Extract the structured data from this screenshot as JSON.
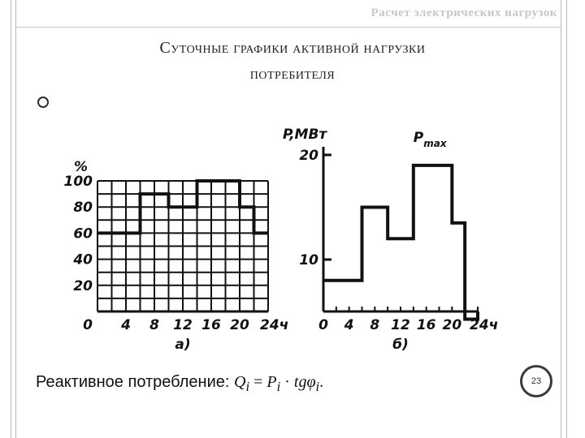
{
  "header": {
    "title": "Расчет электрических нагрузок"
  },
  "slide": {
    "title_line1": "Суточные графики активной нагрузки",
    "title_line2": "потребителя",
    "formula_prefix": "Реактивное потребление:",
    "formula_Q": "Q",
    "formula_Q_sub": "i",
    "formula_eq": "=",
    "formula_P": "P",
    "formula_P_sub": "i",
    "formula_dot": "·",
    "formula_tg": "tgφ",
    "formula_tg_sub": "i",
    "formula_end": ".",
    "page_number": "23"
  },
  "chart_data": [
    {
      "type": "line",
      "ylabel": "%",
      "caption": "а)",
      "xlim": [
        0,
        24
      ],
      "ylim": [
        0,
        100
      ],
      "x_ticks": [
        "0",
        "4",
        "8",
        "12",
        "16",
        "20",
        "24ч"
      ],
      "y_ticks": [
        "20",
        "40",
        "60",
        "80",
        "100"
      ],
      "grid": true,
      "step": true,
      "x": [
        0,
        6,
        6,
        10,
        10,
        14,
        14,
        20,
        20,
        22,
        22,
        24
      ],
      "y": [
        60,
        60,
        90,
        90,
        80,
        80,
        100,
        100,
        80,
        80,
        60,
        60
      ]
    },
    {
      "type": "line",
      "ylabel": "P,МВт",
      "caption": "б)",
      "annotation": "Pmax",
      "xlim": [
        0,
        24
      ],
      "y_ticks": [
        "10",
        "20"
      ],
      "y_tick_values": [
        10,
        20
      ],
      "x_ticks": [
        "0",
        "4",
        "8",
        "12",
        "16",
        "20",
        "24ч"
      ],
      "grid": false,
      "step": true,
      "x": [
        0,
        6,
        6,
        10,
        10,
        14,
        14,
        20,
        20,
        22,
        22,
        24
      ],
      "y": [
        8,
        8,
        15,
        15,
        12,
        12,
        19,
        19,
        13.5,
        13.5,
        4.3,
        4.3
      ]
    }
  ]
}
